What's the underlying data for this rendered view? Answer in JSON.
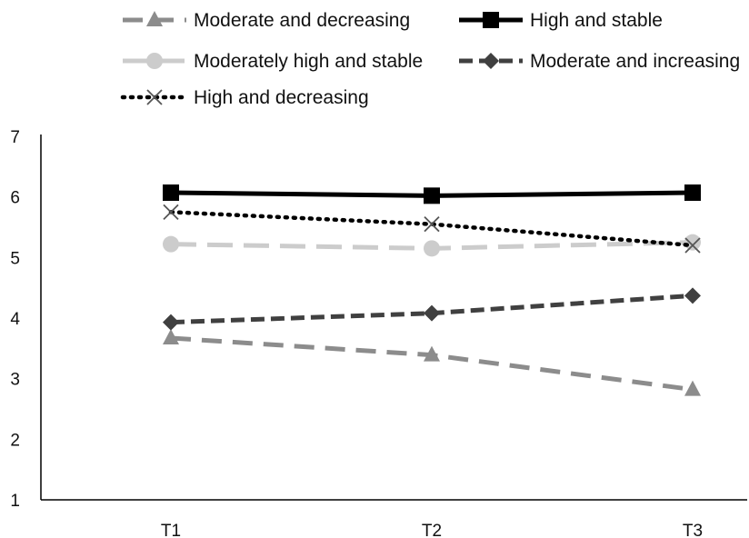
{
  "chart_data": {
    "type": "line",
    "title": "",
    "xlabel": "",
    "ylabel": "",
    "categories": [
      "T1",
      "T2",
      "T3"
    ],
    "ylim": [
      1,
      7
    ],
    "yticks": [
      "1",
      "2",
      "3",
      "4",
      "5",
      "6",
      "7"
    ],
    "grid": false,
    "legend_position": "top",
    "series": [
      {
        "name": "Moderate and decreasing",
        "values": [
          3.67,
          3.39,
          2.82
        ],
        "color": "#8c8c8c",
        "marker": "triangle",
        "line": "long-dash"
      },
      {
        "name": "High and stable",
        "values": [
          6.07,
          6.02,
          6.07
        ],
        "color": "#000000",
        "marker": "square",
        "line": "solid"
      },
      {
        "name": "Moderately high and stable",
        "values": [
          5.22,
          5.15,
          5.25
        ],
        "color": "#cccccc",
        "marker": "circle",
        "line": "long-dash"
      },
      {
        "name": "Moderate and increasing",
        "values": [
          3.93,
          4.08,
          4.37
        ],
        "color": "#404040",
        "marker": "diamond",
        "line": "dash"
      },
      {
        "name": "High and decreasing",
        "values": [
          5.75,
          5.55,
          5.2
        ],
        "color": "#000000",
        "marker": "x",
        "line": "dotted"
      }
    ]
  }
}
